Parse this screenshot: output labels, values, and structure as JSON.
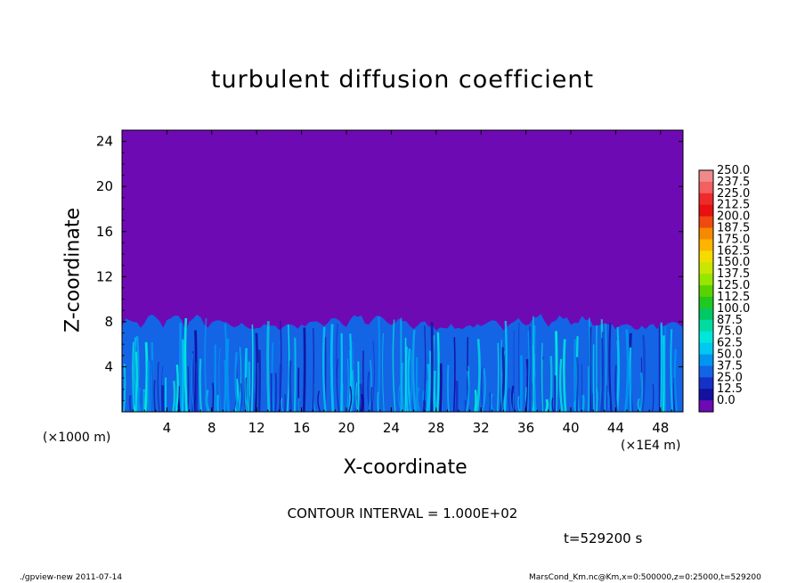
{
  "chart_data": {
    "type": "heatmap",
    "title": "turbulent diffusion coefficient",
    "xlabel": "X-coordinate",
    "ylabel": "Z-coordinate",
    "x_unit_left": "(×1000 m)",
    "x_unit_right": "(×1E4 m)",
    "x_ticks": [
      "4",
      "8",
      "12",
      "16",
      "20",
      "24",
      "28",
      "32",
      "36",
      "40",
      "44",
      "48"
    ],
    "y_ticks": [
      "4",
      "8",
      "12",
      "16",
      "20",
      "24"
    ],
    "xlim": [
      0,
      50
    ],
    "ylim": [
      0,
      25
    ],
    "turbulent_layer_top": 8,
    "background_value": 0.0,
    "colorbar_labels": [
      "250.0",
      "237.5",
      "225.0",
      "212.5",
      "200.0",
      "187.5",
      "175.0",
      "162.5",
      "150.0",
      "137.5",
      "125.0",
      "112.5",
      "100.0",
      "87.5",
      "75.0",
      "62.5",
      "50.0",
      "37.5",
      "25.0",
      "12.5",
      "0.0"
    ],
    "colorbar_colors": [
      "#f08a8a",
      "#f26060",
      "#ee2a2a",
      "#e81010",
      "#f04a10",
      "#f58a00",
      "#ffb400",
      "#f5dc00",
      "#c8e600",
      "#96e600",
      "#5ad200",
      "#20c820",
      "#00c864",
      "#00dca0",
      "#00e6dc",
      "#00c8f0",
      "#0096f0",
      "#1464e6",
      "#1432c8",
      "#1410a0",
      "#6e0ab4"
    ],
    "contour_text": "CONTOUR INTERVAL = 1.000E+02",
    "time_text": "t=529200 s"
  },
  "footer": {
    "left": "./gpview-new   2011-07-14",
    "right": "MarsCond_Km.nc@Km,x=0:500000,z=0:25000,t=529200"
  }
}
